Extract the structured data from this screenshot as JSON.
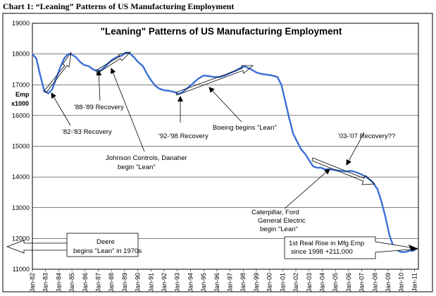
{
  "caption": "Chart 1: “Leaning” Patterns of US Manufacturing Employment",
  "chart_data": {
    "type": "line",
    "title": "\"Leaning\" Patterns of US Manufacturing Employment",
    "ylabel_line1": "Emp",
    "ylabel_line2": "x1000",
    "xlabel": "",
    "ylim": [
      11000,
      19000
    ],
    "yticks": [
      11000,
      12000,
      13000,
      14000,
      15000,
      16000,
      17000,
      18000,
      19000
    ],
    "x_tick_labels": [
      "Jan-82",
      "Jan-83",
      "Jan-84",
      "Jan-85",
      "Jan-86",
      "Jan-87",
      "Jan-88",
      "Jan-89",
      "Jan-90",
      "Jan-91",
      "Jan-92",
      "Jan-93",
      "Jan-94",
      "Jan-95",
      "Jan-96",
      "Jan-97",
      "Jan-98",
      "Jan-99",
      "Jan-00",
      "Jan-01",
      "Jan-02",
      "Jan-03",
      "Jan-04",
      "Jan-05",
      "Jan-06",
      "Jan-07",
      "Jan-08",
      "Jan-09",
      "Jan-10",
      "Jan-11"
    ],
    "xlim": [
      1982.0,
      2011.3
    ],
    "line_color": "#3a6fd8",
    "series": [
      {
        "x": [
          1982.0,
          1982.3,
          1982.6,
          1982.9,
          1983.2,
          1983.5,
          1983.8,
          1984.1,
          1984.4,
          1984.7,
          1985.0,
          1985.3,
          1985.6,
          1985.9,
          1986.3,
          1986.6,
          1986.9,
          1987.2,
          1987.6,
          1988.0,
          1988.4,
          1988.8,
          1989.1,
          1989.4,
          1989.7,
          1990.0,
          1990.4,
          1990.7,
          1991.0,
          1991.3,
          1991.6,
          1992.0,
          1992.4,
          1992.8,
          1993.1,
          1993.4,
          1993.8,
          1994.2,
          1994.6,
          1995.0,
          1995.4,
          1995.8,
          1996.2,
          1996.6,
          1997.0,
          1997.4,
          1997.8,
          1998.1,
          1998.3,
          1998.6,
          1999.0,
          1999.4,
          1999.8,
          2000.2,
          2000.6,
          2000.9,
          2001.2,
          2001.5,
          2001.8,
          2002.1,
          2002.4,
          2002.7,
          2003.0,
          2003.3,
          2003.6,
          2003.9,
          2004.2,
          2004.6,
          2005.0,
          2005.4,
          2005.8,
          2006.2,
          2006.6,
          2007.0,
          2007.4,
          2007.8,
          2008.2,
          2008.5,
          2008.8,
          2009.1,
          2009.4,
          2009.7,
          2010.0,
          2010.3,
          2010.6,
          2010.9,
          2011.2
        ],
        "y": [
          18000,
          17850,
          17300,
          16800,
          16720,
          16850,
          17200,
          17550,
          17850,
          18000,
          17980,
          17900,
          17750,
          17650,
          17600,
          17500,
          17450,
          17470,
          17620,
          17800,
          17900,
          17950,
          18050,
          18020,
          17900,
          17750,
          17600,
          17350,
          17150,
          16980,
          16880,
          16820,
          16800,
          16760,
          16700,
          16760,
          16900,
          17050,
          17200,
          17300,
          17280,
          17250,
          17250,
          17300,
          17380,
          17450,
          17550,
          17600,
          17560,
          17500,
          17400,
          17350,
          17330,
          17300,
          17250,
          17000,
          16450,
          15900,
          15400,
          15150,
          14900,
          14750,
          14550,
          14350,
          14300,
          14300,
          14250,
          14250,
          14220,
          14200,
          14180,
          14200,
          14150,
          14080,
          13980,
          13850,
          13600,
          13200,
          12700,
          12100,
          11750,
          11620,
          11560,
          11560,
          11600,
          11600,
          11680
        ]
      }
    ],
    "annotations": {
      "r8283": "'82-'83 Recovery",
      "r8889": "'88-'89 Recovery",
      "jci_1": "Johnson Controls, Danaher",
      "jci_2": "begin \"Lean\"",
      "r9298": "'92-'98 Recovery",
      "boeing": "Boeing begins \"Lean\"",
      "r0307": "'03-'07 Recovery??",
      "cat_1": "Caterpillar, Ford",
      "cat_2": "General Electric",
      "cat_3": "begin \"Lean\"",
      "deere_1": "Deere",
      "deere_2": "begins \"Lean\" in 1970s",
      "rise_1": "1st Real Rise in Mfg Emp",
      "rise_2": "since 1998 +211,000"
    }
  }
}
